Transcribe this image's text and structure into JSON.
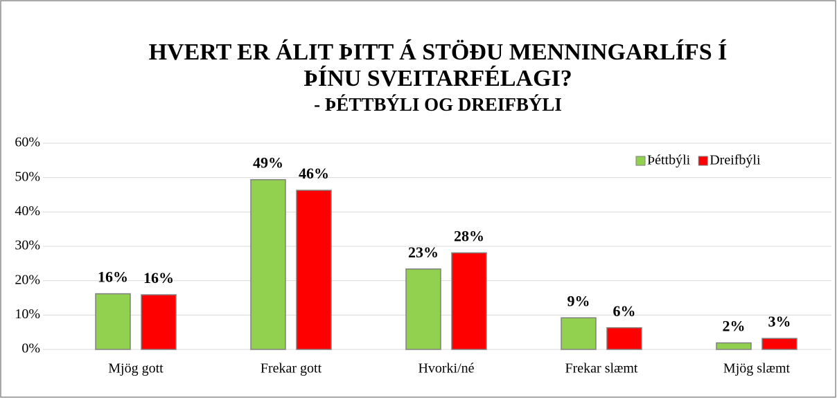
{
  "chart_data": {
    "type": "bar",
    "title_lines": [
      "HVERT ER ÁLIT ÞITT Á STÖÐU MENNINGARLÍFS Í",
      "ÞÍNU SVEITARFÉLAGI?"
    ],
    "subtitle": "- ÞÉTTBÝLI OG DREIFBÝLI",
    "categories": [
      "Mjög gott",
      "Frekar gott",
      "Hvorki/né",
      "Frekar slæmt",
      "Mjög slæmt"
    ],
    "series": [
      {
        "name": "Þéttbýli",
        "color": "#92d050",
        "values": [
          16.2,
          49.4,
          23.4,
          9.2,
          1.9
        ],
        "value_labels": [
          "16%",
          "49%",
          "23%",
          "9%",
          "2%"
        ]
      },
      {
        "name": "Dreifbýli",
        "color": "#ff0000",
        "values": [
          15.9,
          46.3,
          28.1,
          6.3,
          3.2
        ],
        "value_labels": [
          "16%",
          "46%",
          "28%",
          "6%",
          "3%"
        ]
      }
    ],
    "ylim": [
      0,
      60
    ],
    "yticks": [
      {
        "value": 0,
        "label": "0%"
      },
      {
        "value": 10,
        "label": "10%"
      },
      {
        "value": 20,
        "label": "20%"
      },
      {
        "value": 30,
        "label": "30%"
      },
      {
        "value": 40,
        "label": "40%"
      },
      {
        "value": 50,
        "label": "50%"
      },
      {
        "value": 60,
        "label": "60%"
      }
    ],
    "grid": true,
    "legend": "top-right"
  }
}
